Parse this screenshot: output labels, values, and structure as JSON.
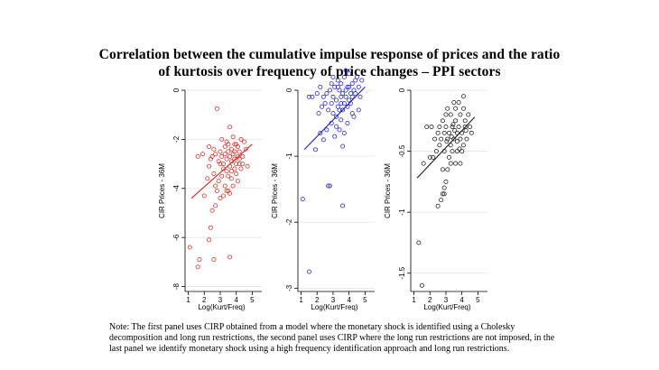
{
  "title_line1": "Correlation between the cumulative impulse response of prices and the ratio",
  "title_line2": "of kurtosis over frequency of price changes – PPI sectors",
  "note": "Note: The first panel uses CIRP obtained from a model where the monetary shock is identified using a Cholesky decomposition and long run restrictions, the second panel uses CIRP where the long run restrictions are not imposed, in the last panel we identify monetary shock using a high frequency identification approach and long run restrictions.",
  "chart_data": [
    {
      "type": "scatter",
      "xlabel": "Log(Kurt/Freq)",
      "ylabel": "CIR Prices - 36M",
      "xticks": [
        1,
        2,
        3,
        4,
        5
      ],
      "yticks": [
        0,
        -2,
        -4,
        -6,
        -8
      ],
      "xlim": [
        0.8,
        5.6
      ],
      "ylim": [
        -8.2,
        0
      ],
      "grid": true,
      "color": "#e8251f",
      "fit": {
        "x0": 1.2,
        "y0": -4.4,
        "x1": 5.0,
        "y1": -2.2
      },
      "points": [
        [
          2.8,
          -0.75
        ],
        [
          2.3,
          -2.3
        ],
        [
          2.5,
          -2.7
        ],
        [
          2.4,
          -2.8
        ],
        [
          2.6,
          -2.4
        ],
        [
          2.7,
          -2.6
        ],
        [
          2.9,
          -2.9
        ],
        [
          3.0,
          -2.5
        ],
        [
          3.1,
          -2.7
        ],
        [
          3.2,
          -3.0
        ],
        [
          3.3,
          -2.6
        ],
        [
          3.4,
          -2.8
        ],
        [
          3.5,
          -2.5
        ],
        [
          3.6,
          -2.7
        ],
        [
          3.7,
          -2.9
        ],
        [
          3.8,
          -2.6
        ],
        [
          3.9,
          -2.8
        ],
        [
          4.0,
          -3.0
        ],
        [
          4.1,
          -2.7
        ],
        [
          4.2,
          -2.5
        ],
        [
          3.3,
          -2.3
        ],
        [
          3.5,
          -2.2
        ],
        [
          3.7,
          -2.4
        ],
        [
          3.9,
          -2.2
        ],
        [
          4.1,
          -2.3
        ],
        [
          3.6,
          -1.5
        ],
        [
          3.8,
          -1.9
        ],
        [
          4.3,
          -2.0
        ],
        [
          4.5,
          -2.1
        ],
        [
          4.6,
          -2.4
        ],
        [
          4.4,
          -2.7
        ],
        [
          4.2,
          -3.0
        ],
        [
          3.9,
          -3.2
        ],
        [
          3.6,
          -3.1
        ],
        [
          3.4,
          -3.3
        ],
        [
          3.1,
          -3.5
        ],
        [
          2.9,
          -3.7
        ],
        [
          3.3,
          -3.9
        ],
        [
          3.5,
          -4.1
        ],
        [
          3.7,
          -3.6
        ],
        [
          4.0,
          -3.4
        ],
        [
          4.3,
          -3.2
        ],
        [
          2.6,
          -3.4
        ],
        [
          2.7,
          -3.9
        ],
        [
          3.2,
          -4.3
        ],
        [
          3.6,
          -4.2
        ],
        [
          2.8,
          -4.1
        ],
        [
          3.0,
          -4.4
        ],
        [
          2.5,
          -4.9
        ],
        [
          2.0,
          -4.3
        ],
        [
          1.6,
          -2.7
        ],
        [
          1.9,
          -2.6
        ],
        [
          2.7,
          -4.7
        ],
        [
          3.4,
          -4.1
        ],
        [
          3.8,
          -3.9
        ],
        [
          4.1,
          -3.7
        ],
        [
          4.4,
          -3.0
        ],
        [
          4.7,
          -3.1
        ],
        [
          2.3,
          -3.1
        ],
        [
          2.2,
          -3.6
        ],
        [
          2.4,
          -5.6
        ],
        [
          2.3,
          -6.1
        ],
        [
          2.6,
          -6.9
        ],
        [
          3.6,
          -6.8
        ],
        [
          1.1,
          -6.4
        ],
        [
          1.7,
          -6.9
        ],
        [
          1.6,
          -7.2
        ],
        [
          3.2,
          -3.2
        ],
        [
          3.0,
          -3.0
        ],
        [
          3.7,
          -3.3
        ],
        [
          3.5,
          -3.5
        ],
        [
          3.9,
          -2.5
        ],
        [
          4.2,
          -2.8
        ],
        [
          3.4,
          -2.1
        ],
        [
          3.1,
          -2.0
        ],
        [
          4.0,
          -2.2
        ]
      ]
    },
    {
      "type": "scatter",
      "xlabel": "Log(Kurt/Freq)",
      "ylabel": "CIR Prices - 36M",
      "xticks": [
        1,
        2,
        3,
        4,
        5
      ],
      "yticks": [
        0,
        -1,
        -2,
        -3
      ],
      "xlim": [
        0.8,
        5.6
      ],
      "ylim": [
        -3.05,
        0
      ],
      "grid": true,
      "color": "#1c1ce0",
      "fit": {
        "x0": 1.2,
        "y0": -0.9,
        "x1": 5.0,
        "y1": 0.05
      },
      "points": [
        [
          3.3,
          0.15
        ],
        [
          3.5,
          0.1
        ],
        [
          3.7,
          0.2
        ],
        [
          4.0,
          0.25
        ],
        [
          4.2,
          0.1
        ],
        [
          4.5,
          0.2
        ],
        [
          4.8,
          0.15
        ],
        [
          3.1,
          0.05
        ],
        [
          3.4,
          0.0
        ],
        [
          3.6,
          -0.05
        ],
        [
          3.8,
          0.0
        ],
        [
          3.9,
          0.05
        ],
        [
          4.1,
          -0.05
        ],
        [
          4.3,
          0.0
        ],
        [
          4.6,
          0.05
        ],
        [
          3.0,
          -0.1
        ],
        [
          3.2,
          -0.15
        ],
        [
          3.5,
          -0.1
        ],
        [
          3.7,
          -0.2
        ],
        [
          4.0,
          -0.15
        ],
        [
          4.2,
          -0.1
        ],
        [
          4.4,
          -0.05
        ],
        [
          2.8,
          0.0
        ],
        [
          2.6,
          -0.05
        ],
        [
          2.9,
          -0.2
        ],
        [
          3.3,
          -0.25
        ],
        [
          3.6,
          -0.3
        ],
        [
          3.9,
          -0.25
        ],
        [
          4.1,
          -0.2
        ],
        [
          2.5,
          -0.2
        ],
        [
          2.7,
          -0.3
        ],
        [
          3.0,
          -0.35
        ],
        [
          3.2,
          -0.4
        ],
        [
          3.5,
          -0.45
        ],
        [
          2.3,
          -0.25
        ],
        [
          2.0,
          -0.05
        ],
        [
          2.2,
          0.05
        ],
        [
          1.7,
          -0.1
        ],
        [
          1.5,
          -0.1
        ],
        [
          2.4,
          -0.1
        ],
        [
          2.9,
          -0.5
        ],
        [
          3.2,
          -0.55
        ],
        [
          3.4,
          -0.6
        ],
        [
          3.7,
          -0.65
        ],
        [
          3.1,
          -0.7
        ],
        [
          2.6,
          -0.6
        ],
        [
          2.4,
          -0.75
        ],
        [
          1.9,
          -0.9
        ],
        [
          2.2,
          -0.65
        ],
        [
          3.6,
          -0.85
        ],
        [
          3.9,
          -0.5
        ],
        [
          4.3,
          -0.4
        ],
        [
          4.6,
          -0.3
        ],
        [
          3.0,
          0.2
        ],
        [
          3.8,
          0.3
        ],
        [
          4.4,
          0.15
        ],
        [
          2.7,
          -1.45
        ],
        [
          2.8,
          -1.45
        ],
        [
          3.6,
          -1.75
        ],
        [
          1.1,
          -1.65
        ],
        [
          1.5,
          -2.75
        ],
        [
          3.3,
          0.05
        ],
        [
          3.5,
          -0.2
        ],
        [
          3.8,
          -0.1
        ],
        [
          4.0,
          0.05
        ],
        [
          4.7,
          -0.1
        ],
        [
          2.1,
          -0.35
        ],
        [
          3.4,
          -0.3
        ],
        [
          4.2,
          -0.35
        ],
        [
          2.9,
          0.1
        ]
      ]
    },
    {
      "type": "scatter",
      "xlabel": "Log(Kurt/Freq)",
      "ylabel": "CIR Prices - 36M",
      "xticks": [
        1,
        2,
        3,
        4,
        5
      ],
      "yticks": [
        0,
        -0.5,
        -1,
        -1.5
      ],
      "xlim": [
        0.8,
        5.6
      ],
      "ylim": [
        -1.65,
        0
      ],
      "grid": true,
      "color": "#1a1a1a",
      "fit": {
        "x0": 1.2,
        "y0": -0.72,
        "x1": 4.8,
        "y1": -0.22
      },
      "points": [
        [
          3.0,
          -0.3
        ],
        [
          3.2,
          -0.35
        ],
        [
          3.4,
          -0.3
        ],
        [
          3.6,
          -0.25
        ],
        [
          3.8,
          -0.3
        ],
        [
          4.0,
          -0.35
        ],
        [
          4.2,
          -0.3
        ],
        [
          3.1,
          -0.4
        ],
        [
          3.3,
          -0.45
        ],
        [
          3.5,
          -0.4
        ],
        [
          3.7,
          -0.35
        ],
        [
          3.9,
          -0.4
        ],
        [
          4.1,
          -0.45
        ],
        [
          4.3,
          -0.4
        ],
        [
          2.9,
          -0.35
        ],
        [
          2.7,
          -0.4
        ],
        [
          2.5,
          -0.35
        ],
        [
          2.8,
          -0.25
        ],
        [
          3.0,
          -0.2
        ],
        [
          3.3,
          -0.2
        ],
        [
          3.6,
          -0.15
        ],
        [
          3.9,
          -0.2
        ],
        [
          4.2,
          -0.25
        ],
        [
          4.5,
          -0.3
        ],
        [
          3.4,
          -0.5
        ],
        [
          3.7,
          -0.5
        ],
        [
          4.0,
          -0.5
        ],
        [
          3.2,
          -0.55
        ],
        [
          2.9,
          -0.5
        ],
        [
          2.6,
          -0.45
        ],
        [
          2.4,
          -0.5
        ],
        [
          2.3,
          -0.4
        ],
        [
          2.1,
          -0.3
        ],
        [
          1.8,
          -0.3
        ],
        [
          2.2,
          -0.55
        ],
        [
          3.5,
          -0.1
        ],
        [
          3.8,
          -0.1
        ],
        [
          4.1,
          -0.15
        ],
        [
          4.4,
          -0.2
        ],
        [
          4.6,
          -0.35
        ],
        [
          3.1,
          -0.15
        ],
        [
          2.6,
          -0.3
        ],
        [
          2.0,
          -0.55
        ],
        [
          1.6,
          -0.6
        ],
        [
          2.8,
          -0.65
        ],
        [
          3.1,
          -0.65
        ],
        [
          3.3,
          -0.6
        ],
        [
          3.6,
          -0.6
        ],
        [
          3.9,
          -0.6
        ],
        [
          3.0,
          -0.75
        ],
        [
          2.9,
          -0.8
        ],
        [
          2.8,
          -0.85
        ],
        [
          2.7,
          -0.9
        ],
        [
          2.9,
          -0.85
        ],
        [
          2.5,
          -0.95
        ],
        [
          4.1,
          -0.05
        ],
        [
          3.7,
          -0.42
        ],
        [
          3.35,
          -0.38
        ],
        [
          3.45,
          -0.28
        ],
        [
          3.85,
          -0.48
        ],
        [
          4.25,
          -0.33
        ],
        [
          1.3,
          -1.25
        ],
        [
          1.5,
          -1.6
        ],
        [
          3.55,
          -0.33
        ],
        [
          3.05,
          -0.42
        ]
      ]
    }
  ]
}
